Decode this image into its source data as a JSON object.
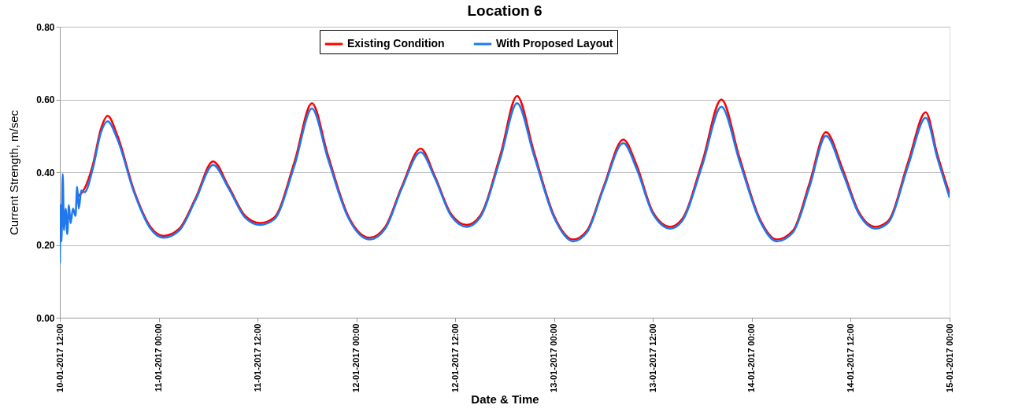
{
  "chart_data": {
    "type": "line",
    "title": "Location 6",
    "xlabel": "Date & Time",
    "ylabel": "Current Strength, m/sec",
    "xlim": [
      "2017-01-10T12:00",
      "2017-01-15T00:00"
    ],
    "xticks": [
      {
        "value": "2017-01-10T12:00",
        "label": "10-01-2017 12:00"
      },
      {
        "value": "2017-01-11T00:00",
        "label": "11-01-2017 00:00"
      },
      {
        "value": "2017-01-11T12:00",
        "label": "11-01-2017 12:00"
      },
      {
        "value": "2017-01-12T00:00",
        "label": "12-01-2017 00:00"
      },
      {
        "value": "2017-01-12T12:00",
        "label": "12-01-2017 12:00"
      },
      {
        "value": "2017-01-13T00:00",
        "label": "13-01-2017 00:00"
      },
      {
        "value": "2017-01-13T12:00",
        "label": "13-01-2017 12:00"
      },
      {
        "value": "2017-01-14T00:00",
        "label": "14-01-2017 00:00"
      },
      {
        "value": "2017-01-14T12:00",
        "label": "14-01-2017 12:00"
      },
      {
        "value": "2017-01-15T00:00",
        "label": "15-01-2017 00:00"
      }
    ],
    "ylim": [
      0,
      0.8
    ],
    "yticks": [
      {
        "value": 0,
        "label": "0.00"
      },
      {
        "value": 0.2,
        "label": "0.20"
      },
      {
        "value": 0.4,
        "label": "0.40"
      },
      {
        "value": 0.6,
        "label": "0.60"
      },
      {
        "value": 0.8,
        "label": "0.80"
      }
    ],
    "grid": "y",
    "legend": "top",
    "marker": "none",
    "line_style": "solid",
    "series": [
      {
        "name": "Existing Condition",
        "color": "#ff0000",
        "x": [
          "2017-01-10T14:00",
          "2017-01-10T15:00",
          "2017-01-10T16:00",
          "2017-01-10T17:00",
          "2017-01-10T17:48",
          "2017-01-10T19:00",
          "2017-01-10T21:00",
          "2017-01-10T23:00",
          "2017-01-11T00:36",
          "2017-01-11T02:30",
          "2017-01-11T04:30",
          "2017-01-11T06:36",
          "2017-01-11T08:30",
          "2017-01-11T10:30",
          "2017-01-11T12:18",
          "2017-01-11T14:00",
          "2017-01-11T16:30",
          "2017-01-11T18:36",
          "2017-01-11T20:30",
          "2017-01-11T23:00",
          "2017-01-12T01:36",
          "2017-01-12T03:30",
          "2017-01-12T05:30",
          "2017-01-12T07:48",
          "2017-01-12T09:30",
          "2017-01-12T11:30",
          "2017-01-12T13:24",
          "2017-01-12T15:00",
          "2017-01-12T17:30",
          "2017-01-12T19:30",
          "2017-01-12T21:30",
          "2017-01-13T00:00",
          "2017-01-13T02:18",
          "2017-01-13T04:00",
          "2017-01-13T06:00",
          "2017-01-13T08:24",
          "2017-01-13T10:00",
          "2017-01-13T12:00",
          "2017-01-13T14:06",
          "2017-01-13T15:30",
          "2017-01-13T18:00",
          "2017-01-13T20:18",
          "2017-01-13T22:30",
          "2017-01-14T01:00",
          "2017-01-14T03:00",
          "2017-01-14T05:00",
          "2017-01-14T07:00",
          "2017-01-14T09:00",
          "2017-01-14T11:00",
          "2017-01-14T13:00",
          "2017-01-14T15:00",
          "2017-01-14T16:30",
          "2017-01-14T19:00",
          "2017-01-14T21:06",
          "2017-01-14T22:30",
          "2017-01-15T00:00"
        ],
        "values": [
          0.33,
          0.355,
          0.42,
          0.52,
          0.555,
          0.5,
          0.35,
          0.25,
          0.225,
          0.245,
          0.33,
          0.43,
          0.36,
          0.28,
          0.26,
          0.275,
          0.43,
          0.59,
          0.45,
          0.28,
          0.22,
          0.25,
          0.36,
          0.465,
          0.39,
          0.285,
          0.255,
          0.28,
          0.45,
          0.61,
          0.46,
          0.28,
          0.215,
          0.24,
          0.36,
          0.49,
          0.42,
          0.29,
          0.25,
          0.27,
          0.43,
          0.6,
          0.44,
          0.27,
          0.215,
          0.24,
          0.37,
          0.51,
          0.41,
          0.29,
          0.25,
          0.265,
          0.43,
          0.565,
          0.45,
          0.34
        ]
      },
      {
        "name": "With Proposed Layout",
        "color": "#1f78ef",
        "x": [
          "2017-01-10T12:00",
          "2017-01-10T12:06",
          "2017-01-10T12:12",
          "2017-01-10T12:21",
          "2017-01-10T12:30",
          "2017-01-10T12:42",
          "2017-01-10T12:54",
          "2017-01-10T13:06",
          "2017-01-10T13:18",
          "2017-01-10T13:36",
          "2017-01-10T13:54",
          "2017-01-10T14:06",
          "2017-01-10T14:18",
          "2017-01-10T14:36",
          "2017-01-10T15:00",
          "2017-01-10T16:00",
          "2017-01-10T17:00",
          "2017-01-10T17:48",
          "2017-01-10T19:00",
          "2017-01-10T21:00",
          "2017-01-10T23:00",
          "2017-01-11T00:36",
          "2017-01-11T02:30",
          "2017-01-11T04:30",
          "2017-01-11T06:36",
          "2017-01-11T08:30",
          "2017-01-11T10:30",
          "2017-01-11T12:18",
          "2017-01-11T14:00",
          "2017-01-11T16:30",
          "2017-01-11T18:36",
          "2017-01-11T20:30",
          "2017-01-11T23:00",
          "2017-01-12T01:36",
          "2017-01-12T03:30",
          "2017-01-12T05:30",
          "2017-01-12T07:48",
          "2017-01-12T09:30",
          "2017-01-12T11:30",
          "2017-01-12T13:24",
          "2017-01-12T15:00",
          "2017-01-12T17:30",
          "2017-01-12T19:30",
          "2017-01-12T21:30",
          "2017-01-13T00:00",
          "2017-01-13T02:18",
          "2017-01-13T04:00",
          "2017-01-13T06:00",
          "2017-01-13T08:24",
          "2017-01-13T10:00",
          "2017-01-13T12:00",
          "2017-01-13T14:06",
          "2017-01-13T15:30",
          "2017-01-13T18:00",
          "2017-01-13T20:18",
          "2017-01-13T22:30",
          "2017-01-14T01:00",
          "2017-01-14T03:00",
          "2017-01-14T05:00",
          "2017-01-14T07:00",
          "2017-01-14T09:00",
          "2017-01-14T11:00",
          "2017-01-14T13:00",
          "2017-01-14T15:00",
          "2017-01-14T16:30",
          "2017-01-14T19:00",
          "2017-01-14T21:06",
          "2017-01-14T22:30",
          "2017-01-15T00:00"
        ],
        "values": [
          0.15,
          0.31,
          0.21,
          0.395,
          0.24,
          0.3,
          0.23,
          0.31,
          0.26,
          0.3,
          0.28,
          0.36,
          0.3,
          0.35,
          0.345,
          0.41,
          0.51,
          0.54,
          0.49,
          0.345,
          0.245,
          0.22,
          0.24,
          0.325,
          0.42,
          0.355,
          0.275,
          0.255,
          0.27,
          0.42,
          0.575,
          0.44,
          0.275,
          0.215,
          0.245,
          0.355,
          0.455,
          0.385,
          0.28,
          0.25,
          0.275,
          0.44,
          0.59,
          0.45,
          0.275,
          0.21,
          0.235,
          0.355,
          0.48,
          0.41,
          0.285,
          0.245,
          0.265,
          0.42,
          0.58,
          0.43,
          0.265,
          0.21,
          0.235,
          0.36,
          0.5,
          0.4,
          0.285,
          0.245,
          0.26,
          0.42,
          0.55,
          0.44,
          0.33
        ]
      }
    ]
  }
}
